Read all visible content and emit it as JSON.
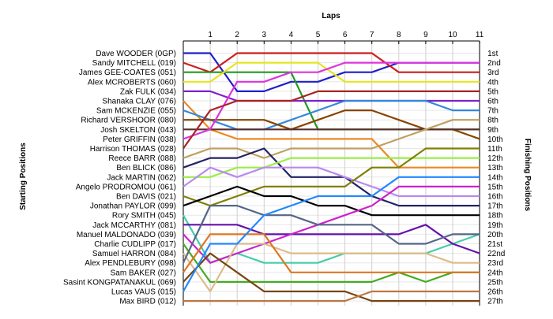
{
  "chart_data": {
    "type": "line",
    "title": "",
    "xlabel": "Laps",
    "ylabel_left": "Starting Positions",
    "ylabel_right": "Finishing Positions",
    "laps": [
      1,
      2,
      3,
      4,
      5,
      6,
      7,
      8,
      9,
      10,
      11
    ],
    "finishing_labels": [
      "1st",
      "2nd",
      "3rd",
      "4th",
      "5th",
      "6th",
      "7th",
      "8th",
      "9th",
      "10th",
      "11th",
      "12th",
      "13th",
      "14th",
      "15th",
      "16th",
      "17th",
      "18th",
      "19th",
      "20th",
      "21st",
      "22nd",
      "23rd",
      "24th",
      "25th",
      "26th",
      "27th"
    ],
    "series": [
      {
        "name": "Dave WOODER (0GP)",
        "color": "#1f1fcc",
        "positions": [
          1,
          1,
          5,
          5,
          4,
          4,
          3,
          3,
          2,
          2,
          2,
          2
        ]
      },
      {
        "name": "Sandy MITCHELL (019)",
        "color": "#cc1f1f",
        "positions": [
          2,
          3,
          1,
          1,
          1,
          1,
          1,
          1,
          3,
          3,
          3,
          3
        ]
      },
      {
        "name": "James GEE-COATES (051)",
        "color": "#229922",
        "positions": [
          3,
          3,
          3,
          3,
          3,
          9,
          9,
          9,
          9,
          9,
          9,
          9
        ]
      },
      {
        "name": "Alex MCROBERTS (060)",
        "color": "#e5e51f",
        "positions": [
          4,
          4,
          2,
          2,
          2,
          2,
          4,
          4,
          4,
          4,
          4,
          4
        ]
      },
      {
        "name": "Zak FULK (034)",
        "color": "#7f1fcc",
        "positions": [
          5,
          5,
          6,
          6,
          6,
          6,
          6,
          6,
          6,
          6,
          6,
          6
        ]
      },
      {
        "name": "Shanaka CLAY (076)",
        "color": "#ee8822",
        "positions": [
          6,
          9,
          10,
          10,
          10,
          10,
          10,
          10,
          13,
          13,
          13,
          13
        ]
      },
      {
        "name": "Sam MCKENZIE (055)",
        "color": "#3388dd",
        "positions": [
          7,
          8,
          9,
          9,
          8,
          7,
          6,
          6,
          6,
          6,
          7,
          7
        ]
      },
      {
        "name": "Richard VERSHOOR (080)",
        "color": "#884400",
        "positions": [
          8,
          8,
          8,
          8,
          9,
          8,
          7,
          7,
          8,
          9,
          9,
          10
        ]
      },
      {
        "name": "Josh SKELTON (043)",
        "color": "#5a2d2d",
        "positions": [
          9,
          9,
          9,
          9,
          9,
          9,
          9,
          9,
          9,
          9,
          9,
          9
        ]
      },
      {
        "name": "Peter GRIFFIN (038)",
        "color": "#dd33dd",
        "positions": [
          10,
          9,
          4,
          4,
          3,
          3,
          2,
          2,
          2,
          2,
          2,
          2
        ]
      },
      {
        "name": "Harrison THOMAS (028)",
        "color": "#aa2222",
        "positions": [
          11,
          7,
          6,
          6,
          6,
          5,
          5,
          5,
          5,
          5,
          5,
          5
        ]
      },
      {
        "name": "Reece BARR (088)",
        "color": "#c0a060",
        "positions": [
          12,
          11,
          11,
          12,
          11,
          11,
          11,
          11,
          10,
          9,
          8,
          8
        ]
      },
      {
        "name": "Ben BLICK (086)",
        "color": "#222266",
        "positions": [
          13,
          12,
          12,
          11,
          14,
          14,
          14,
          16,
          17,
          17,
          17,
          17
        ]
      },
      {
        "name": "Jack MARTIN (062)",
        "color": "#99ee44",
        "positions": [
          14,
          14,
          13,
          13,
          12,
          12,
          12,
          12,
          12,
          12,
          12,
          12
        ]
      },
      {
        "name": "Angelo PRODROMOU (061)",
        "color": "#bb88ee",
        "positions": [
          15,
          13,
          14,
          13,
          13,
          13,
          14,
          15,
          16,
          16,
          16,
          16
        ]
      },
      {
        "name": "Ben DAVIS (021)",
        "color": "#808000",
        "positions": [
          16,
          17,
          16,
          15,
          15,
          15,
          15,
          13,
          13,
          11,
          11,
          11
        ]
      },
      {
        "name": "Jonathan PAYLOR (099)",
        "color": "#000000",
        "positions": [
          17,
          16,
          15,
          16,
          16,
          17,
          17,
          18,
          18,
          18,
          18,
          18
        ]
      },
      {
        "name": "Rory SMITH (045)",
        "color": "#44ccaa",
        "positions": [
          18,
          23,
          22,
          23,
          23,
          23,
          22,
          22,
          22,
          22,
          21,
          20
        ]
      },
      {
        "name": "Jack MCCARTHY (081)",
        "color": "#6611aa",
        "positions": [
          19,
          19,
          19,
          20,
          20,
          20,
          20,
          20,
          20,
          19,
          21,
          22
        ]
      },
      {
        "name": "Manuel MALDONADO (039)",
        "color": "#cc22cc",
        "positions": [
          20,
          23,
          22,
          21,
          20,
          19,
          18,
          17,
          15,
          15,
          15,
          15
        ]
      },
      {
        "name": "Charlie CUDLIPP (017)",
        "color": "#44aa22",
        "positions": [
          21,
          25,
          25,
          25,
          25,
          25,
          25,
          25,
          24,
          25,
          24,
          24
        ]
      },
      {
        "name": "Samuel HARRON (084)",
        "color": "#ddbb88",
        "positions": [
          22,
          26,
          21,
          21,
          22,
          22,
          22,
          22,
          22,
          22,
          23,
          23
        ]
      },
      {
        "name": "Alex PENDLEBURY (098)",
        "color": "#556688",
        "positions": [
          23,
          17,
          17,
          18,
          18,
          19,
          19,
          19,
          21,
          21,
          20,
          20
        ]
      },
      {
        "name": "Sam BAKER (027)",
        "color": "#dd7722",
        "positions": [
          24,
          20,
          20,
          20,
          24,
          24,
          24,
          24,
          24,
          24,
          24,
          24
        ]
      },
      {
        "name": "Sasint KONGPATANAKUL (069)",
        "color": "#774411",
        "positions": [
          25,
          22,
          24,
          26,
          26,
          26,
          26,
          27,
          27,
          27,
          27,
          27
        ]
      },
      {
        "name": "Lucas VAUS (015)",
        "color": "#2288ff",
        "positions": [
          26,
          21,
          21,
          18,
          17,
          16,
          16,
          16,
          14,
          14,
          14,
          14
        ]
      },
      {
        "name": "Max BIRD (012)",
        "color": "#bb7744",
        "positions": [
          27,
          27,
          27,
          27,
          27,
          27,
          27,
          26,
          26,
          26,
          26,
          26
        ]
      }
    ]
  }
}
